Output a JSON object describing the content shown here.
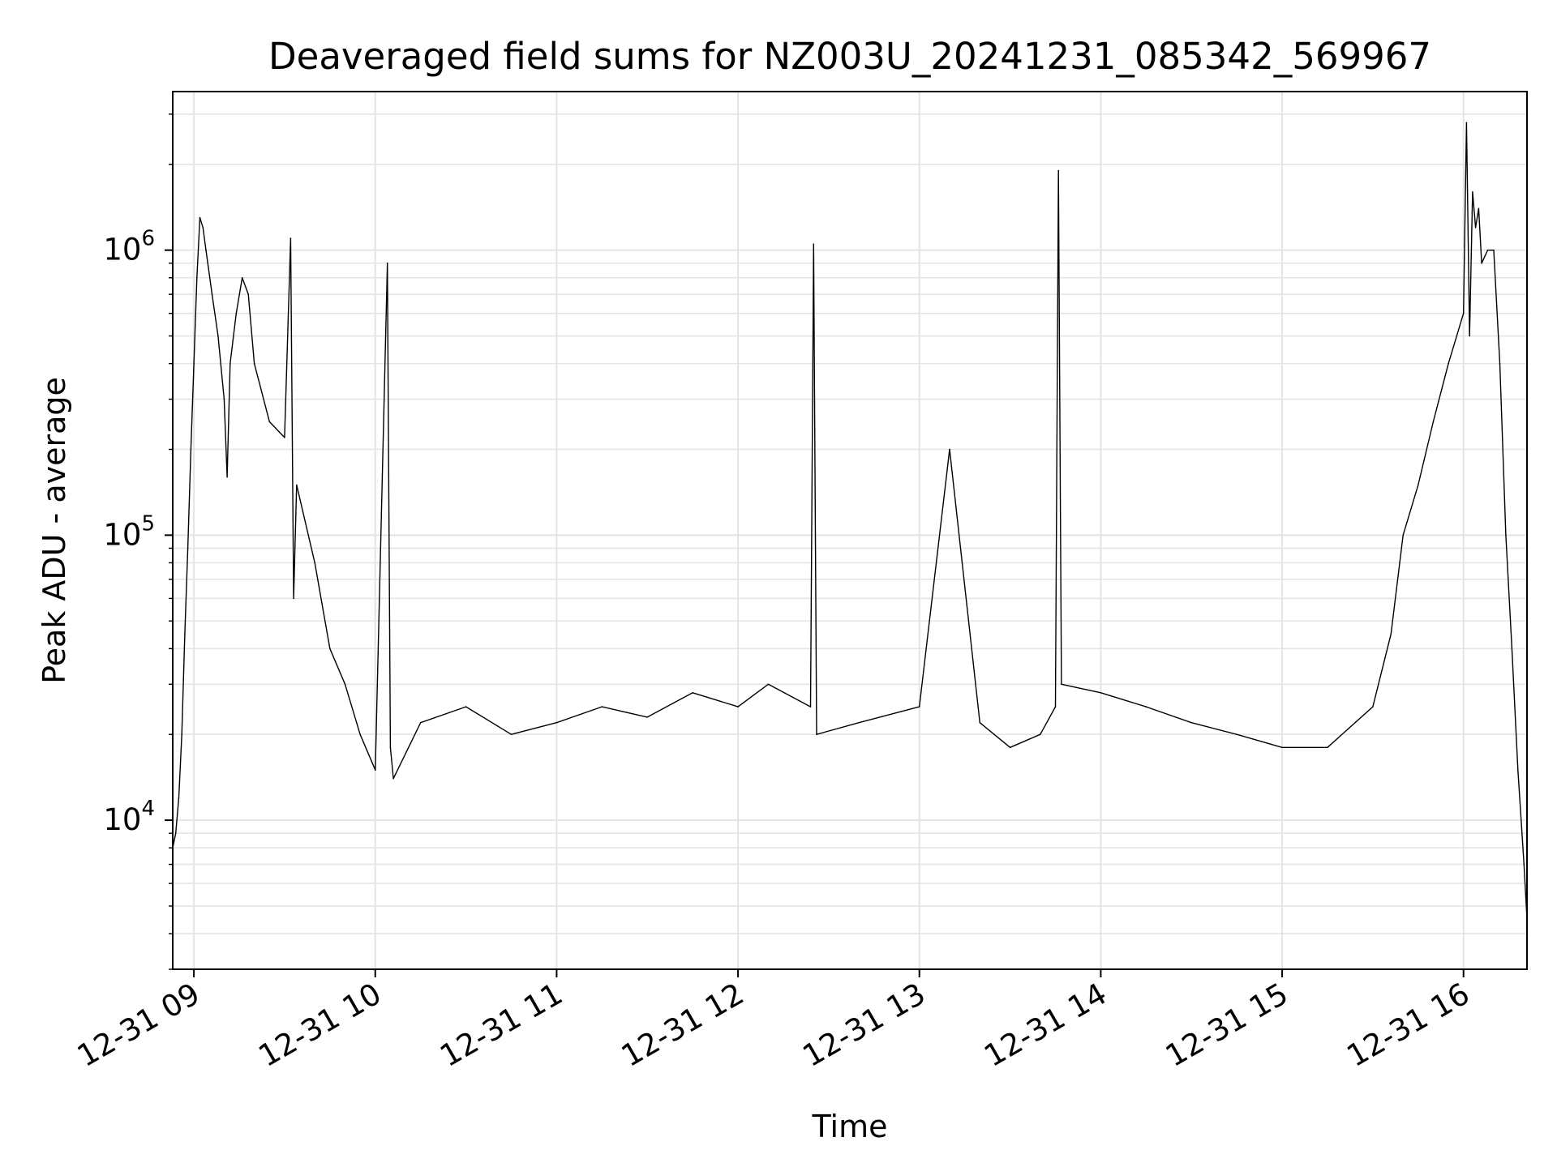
{
  "chart_data": {
    "type": "line",
    "title": "Deaveraged field sums for NZ003U_20241231_085342_569967",
    "xlabel": "Time",
    "ylabel": "Peak ADU - average",
    "y_scale": "log",
    "ylim": [
      3000,
      3600000
    ],
    "xlim": [
      "2024-12-31 08:53",
      "2024-12-31 16:21"
    ],
    "grid": true,
    "x_ticks": [
      {
        "x": "2024-12-31 09:00",
        "label": "12-31 09"
      },
      {
        "x": "2024-12-31 10:00",
        "label": "12-31 10"
      },
      {
        "x": "2024-12-31 11:00",
        "label": "12-31 11"
      },
      {
        "x": "2024-12-31 12:00",
        "label": "12-31 12"
      },
      {
        "x": "2024-12-31 13:00",
        "label": "12-31 13"
      },
      {
        "x": "2024-12-31 14:00",
        "label": "12-31 14"
      },
      {
        "x": "2024-12-31 15:00",
        "label": "12-31 15"
      },
      {
        "x": "2024-12-31 16:00",
        "label": "12-31 16"
      }
    ],
    "y_ticks": [
      {
        "value": 10000,
        "base": "10",
        "exp": "4"
      },
      {
        "value": 100000,
        "base": "10",
        "exp": "5"
      },
      {
        "value": 1000000,
        "base": "10",
        "exp": "6"
      }
    ],
    "series": [
      {
        "color": "#000000",
        "x": [
          "2024-12-31 08:53",
          "2024-12-31 08:54",
          "2024-12-31 08:55",
          "2024-12-31 08:56",
          "2024-12-31 08:57",
          "2024-12-31 08:58",
          "2024-12-31 08:59",
          "2024-12-31 09:00",
          "2024-12-31 09:01",
          "2024-12-31 09:02",
          "2024-12-31 09:03",
          "2024-12-31 09:04",
          "2024-12-31 09:06",
          "2024-12-31 09:08",
          "2024-12-31 09:10",
          "2024-12-31 09:11",
          "2024-12-31 09:12",
          "2024-12-31 09:14",
          "2024-12-31 09:16",
          "2024-12-31 09:18",
          "2024-12-31 09:20",
          "2024-12-31 09:25",
          "2024-12-31 09:30",
          "2024-12-31 09:32",
          "2024-12-31 09:33",
          "2024-12-31 09:34",
          "2024-12-31 09:40",
          "2024-12-31 09:45",
          "2024-12-31 09:50",
          "2024-12-31 09:55",
          "2024-12-31 10:00",
          "2024-12-31 10:04",
          "2024-12-31 10:05",
          "2024-12-31 10:06",
          "2024-12-31 10:15",
          "2024-12-31 10:30",
          "2024-12-31 10:45",
          "2024-12-31 11:00",
          "2024-12-31 11:15",
          "2024-12-31 11:30",
          "2024-12-31 11:45",
          "2024-12-31 12:00",
          "2024-12-31 12:10",
          "2024-12-31 12:24",
          "2024-12-31 12:25",
          "2024-12-31 12:26",
          "2024-12-31 12:40",
          "2024-12-31 13:00",
          "2024-12-31 13:10",
          "2024-12-31 13:20",
          "2024-12-31 13:30",
          "2024-12-31 13:40",
          "2024-12-31 13:45",
          "2024-12-31 13:46",
          "2024-12-31 13:47",
          "2024-12-31 14:00",
          "2024-12-31 14:15",
          "2024-12-31 14:30",
          "2024-12-31 14:45",
          "2024-12-31 15:00",
          "2024-12-31 15:15",
          "2024-12-31 15:30",
          "2024-12-31 15:36",
          "2024-12-31 15:40",
          "2024-12-31 15:45",
          "2024-12-31 15:50",
          "2024-12-31 15:55",
          "2024-12-31 16:00",
          "2024-12-31 16:01",
          "2024-12-31 16:02",
          "2024-12-31 16:03",
          "2024-12-31 16:04",
          "2024-12-31 16:05",
          "2024-12-31 16:06",
          "2024-12-31 16:08",
          "2024-12-31 16:10",
          "2024-12-31 16:12",
          "2024-12-31 16:14",
          "2024-12-31 16:16",
          "2024-12-31 16:18",
          "2024-12-31 16:20",
          "2024-12-31 16:21"
        ],
        "y": [
          8000,
          9000,
          12000,
          20000,
          45000,
          90000,
          200000,
          400000,
          800000,
          1300000,
          1200000,
          1000000,
          700000,
          500000,
          300000,
          160000,
          400000,
          600000,
          800000,
          700000,
          400000,
          250000,
          220000,
          1100000,
          60000,
          150000,
          80000,
          40000,
          30000,
          20000,
          15000,
          900000,
          18000,
          14000,
          22000,
          25000,
          20000,
          22000,
          25000,
          23000,
          28000,
          25000,
          30000,
          25000,
          1050000,
          20000,
          22000,
          25000,
          200000,
          22000,
          18000,
          20000,
          25000,
          1900000,
          30000,
          28000,
          25000,
          22000,
          20000,
          18000,
          18000,
          25000,
          45000,
          100000,
          150000,
          250000,
          400000,
          600000,
          2800000,
          500000,
          1600000,
          1200000,
          1400000,
          900000,
          1000000,
          1000000,
          400000,
          100000,
          40000,
          15000,
          7000,
          4500
        ]
      }
    ]
  }
}
